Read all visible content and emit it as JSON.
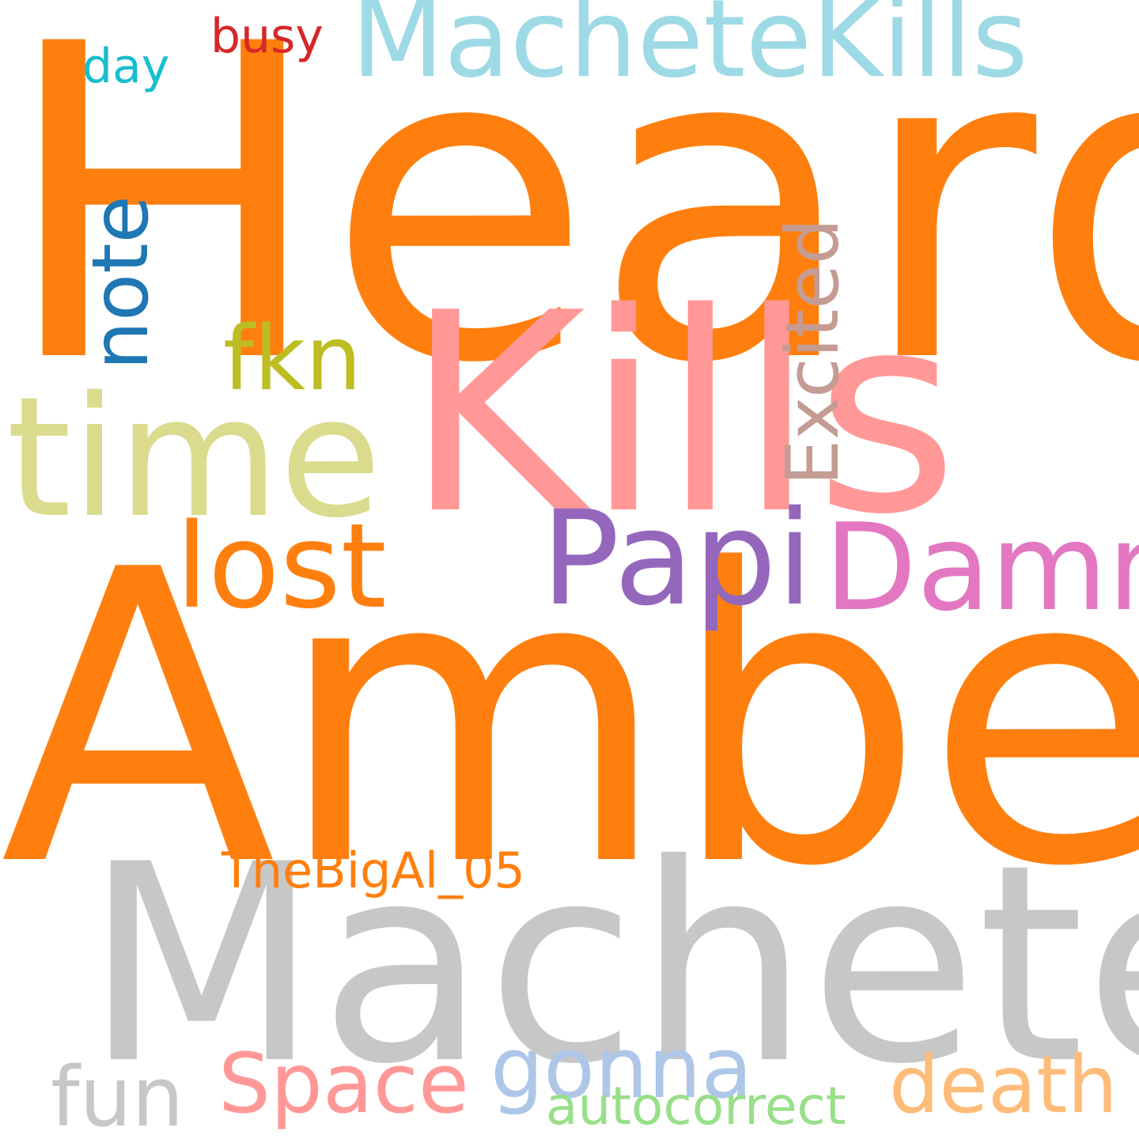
{
  "words": {
    "heard": {
      "text": "Heard",
      "color": "#ff7f0e"
    },
    "amber": {
      "text": "Amber",
      "color": "#ff7f0e"
    },
    "machete": {
      "text": "Machete",
      "color": "#c7c7c7"
    },
    "kills": {
      "text": "Kills",
      "color": "#ff9896"
    },
    "time": {
      "text": "time",
      "color": "#dbdb8d"
    },
    "machete_kills": {
      "text": "MacheteKills",
      "color": "#9edae5"
    },
    "papi": {
      "text": "Papi",
      "color": "#9467bd"
    },
    "damn": {
      "text": "Damn",
      "color": "#e377c2"
    },
    "lost": {
      "text": "lost",
      "color": "#ff7f0e"
    },
    "fkn": {
      "text": "fkn",
      "color": "#bcbd22"
    },
    "excited": {
      "text": "Excited",
      "color": "#c49c94"
    },
    "note": {
      "text": "note",
      "color": "#1f77b4"
    },
    "gonna": {
      "text": "gonna",
      "color": "#aec7e8"
    },
    "space": {
      "text": "Space",
      "color": "#ff9896"
    },
    "death": {
      "text": "death",
      "color": "#ffbb78"
    },
    "fun": {
      "text": "fun",
      "color": "#c7c7c7"
    },
    "thebigal": {
      "text": "TheBigAl_05",
      "color": "#ff7f0e"
    },
    "autocorrect": {
      "text": "autocorrect",
      "color": "#98df8a"
    },
    "day": {
      "text": "day",
      "color": "#17becf"
    },
    "busy": {
      "text": "busy",
      "color": "#d62728"
    }
  }
}
